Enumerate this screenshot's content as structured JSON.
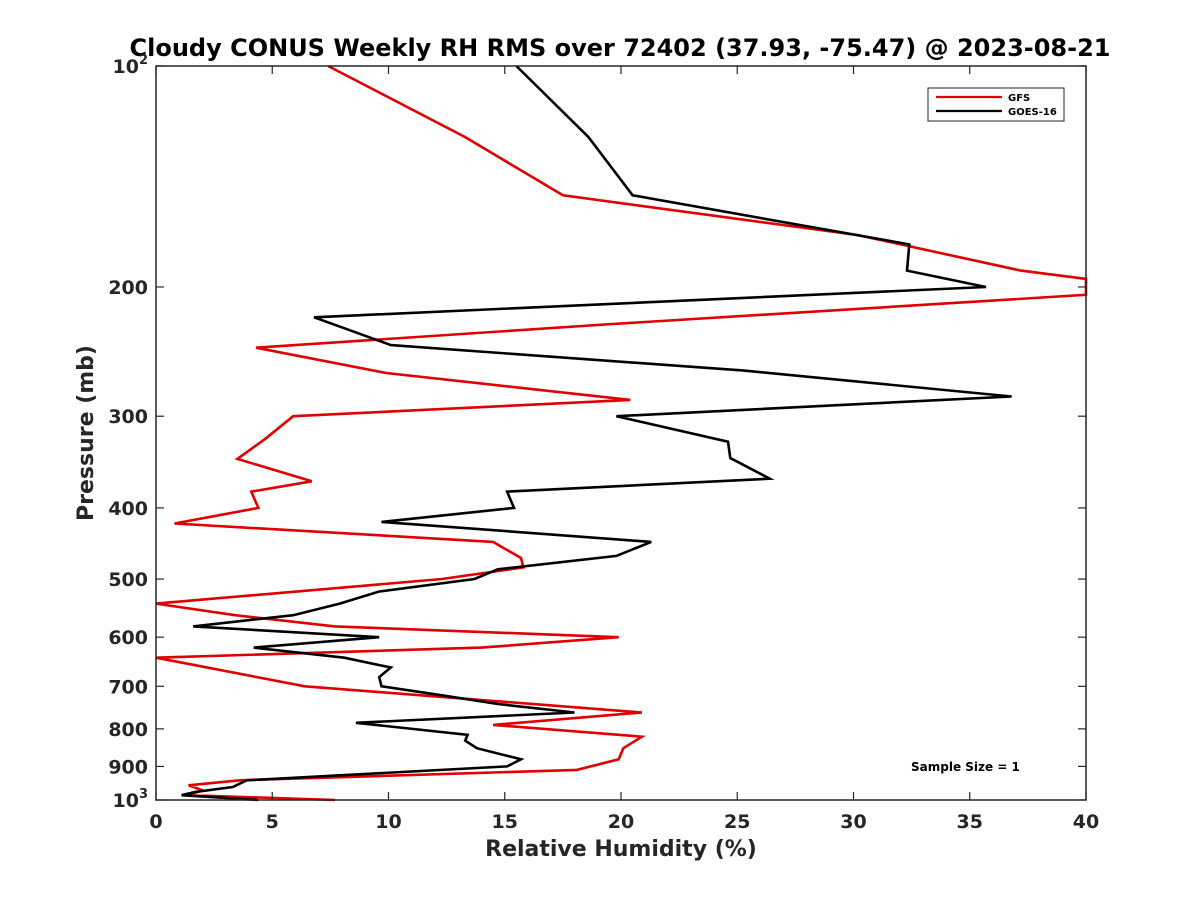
{
  "chart_data": {
    "type": "line",
    "title": "Cloudy CONUS Weekly RH RMS over 72402 (37.93, -75.47) @ 2023-08-21",
    "xlabel": "Relative Humidity (%)",
    "ylabel": "Pressure (mb)",
    "xlim": [
      0,
      40
    ],
    "ylim": [
      100,
      1000
    ],
    "y_scale": "log",
    "y_reversed": true,
    "grid": false,
    "legend_position": "top-right",
    "annotation": "Sample Size = 1",
    "x_ticks": [
      "0",
      "5",
      "10",
      "15",
      "20",
      "25",
      "30",
      "35",
      "40"
    ],
    "y_ticks": [
      {
        "value": 100,
        "base": "10",
        "exp": "2"
      },
      {
        "value": 200,
        "label": "200"
      },
      {
        "value": 300,
        "label": "300"
      },
      {
        "value": 400,
        "label": "400"
      },
      {
        "value": 500,
        "label": "500"
      },
      {
        "value": 600,
        "label": "600"
      },
      {
        "value": 700,
        "label": "700"
      },
      {
        "value": 800,
        "label": "800"
      },
      {
        "value": 900,
        "label": "900"
      },
      {
        "value": 1000,
        "base": "10",
        "exp": "3"
      }
    ],
    "series": [
      {
        "name": "GFS",
        "color": "#e00000",
        "points": [
          [
            7.4,
            100
          ],
          [
            13.3,
            125
          ],
          [
            17.5,
            150
          ],
          [
            30.2,
            170
          ],
          [
            37.2,
            190
          ],
          [
            40,
            195
          ],
          [
            40,
            205
          ],
          [
            19.3,
            225
          ],
          [
            4.3,
            242
          ],
          [
            9.9,
            262
          ],
          [
            20.4,
            285
          ],
          [
            5.9,
            300
          ],
          [
            4.7,
            322
          ],
          [
            3.5,
            343
          ],
          [
            6.7,
            368
          ],
          [
            4.1,
            380
          ],
          [
            4.4,
            400
          ],
          [
            0.8,
            420
          ],
          [
            14.5,
            445
          ],
          [
            15.7,
            468
          ],
          [
            15.8,
            482
          ],
          [
            12.3,
            500
          ],
          [
            0,
            540
          ],
          [
            3.4,
            560
          ],
          [
            7.7,
            580
          ],
          [
            19.9,
            600
          ],
          [
            14.0,
            620
          ],
          [
            0,
            640
          ],
          [
            6.4,
            700
          ],
          [
            20.9,
            760
          ],
          [
            14.5,
            790
          ],
          [
            20.9,
            820
          ],
          [
            20.1,
            850
          ],
          [
            19.9,
            880
          ],
          [
            18.1,
            910
          ],
          [
            3.6,
            940
          ],
          [
            1.4,
            955
          ],
          [
            2.0,
            970
          ],
          [
            1.4,
            985
          ],
          [
            7.7,
            1000
          ]
        ]
      },
      {
        "name": "GOES-16",
        "color": "#000000",
        "points": [
          [
            15.5,
            100
          ],
          [
            18.6,
            125
          ],
          [
            20.5,
            150
          ],
          [
            32.4,
            175
          ],
          [
            32.3,
            190
          ],
          [
            35.7,
            200
          ],
          [
            6.8,
            220
          ],
          [
            10.1,
            240
          ],
          [
            25.3,
            260
          ],
          [
            36.8,
            282
          ],
          [
            19.8,
            300
          ],
          [
            24.6,
            325
          ],
          [
            24.7,
            342
          ],
          [
            26.4,
            365
          ],
          [
            15.1,
            380
          ],
          [
            15.4,
            400
          ],
          [
            9.7,
            418
          ],
          [
            21.3,
            445
          ],
          [
            19.8,
            465
          ],
          [
            14.7,
            485
          ],
          [
            13.7,
            500
          ],
          [
            9.6,
            520
          ],
          [
            7.9,
            540
          ],
          [
            5.9,
            560
          ],
          [
            1.6,
            580
          ],
          [
            9.6,
            600
          ],
          [
            4.2,
            620
          ],
          [
            8.1,
            640
          ],
          [
            10.1,
            660
          ],
          [
            9.6,
            680
          ],
          [
            9.7,
            700
          ],
          [
            12.3,
            720
          ],
          [
            14.7,
            740
          ],
          [
            18.0,
            760
          ],
          [
            8.6,
            785
          ],
          [
            13.4,
            815
          ],
          [
            13.3,
            830
          ],
          [
            13.8,
            850
          ],
          [
            15.7,
            880
          ],
          [
            15.1,
            900
          ],
          [
            3.9,
            940
          ],
          [
            3.3,
            960
          ],
          [
            1.7,
            975
          ],
          [
            1.1,
            985
          ],
          [
            4.4,
            1000
          ]
        ]
      }
    ]
  }
}
